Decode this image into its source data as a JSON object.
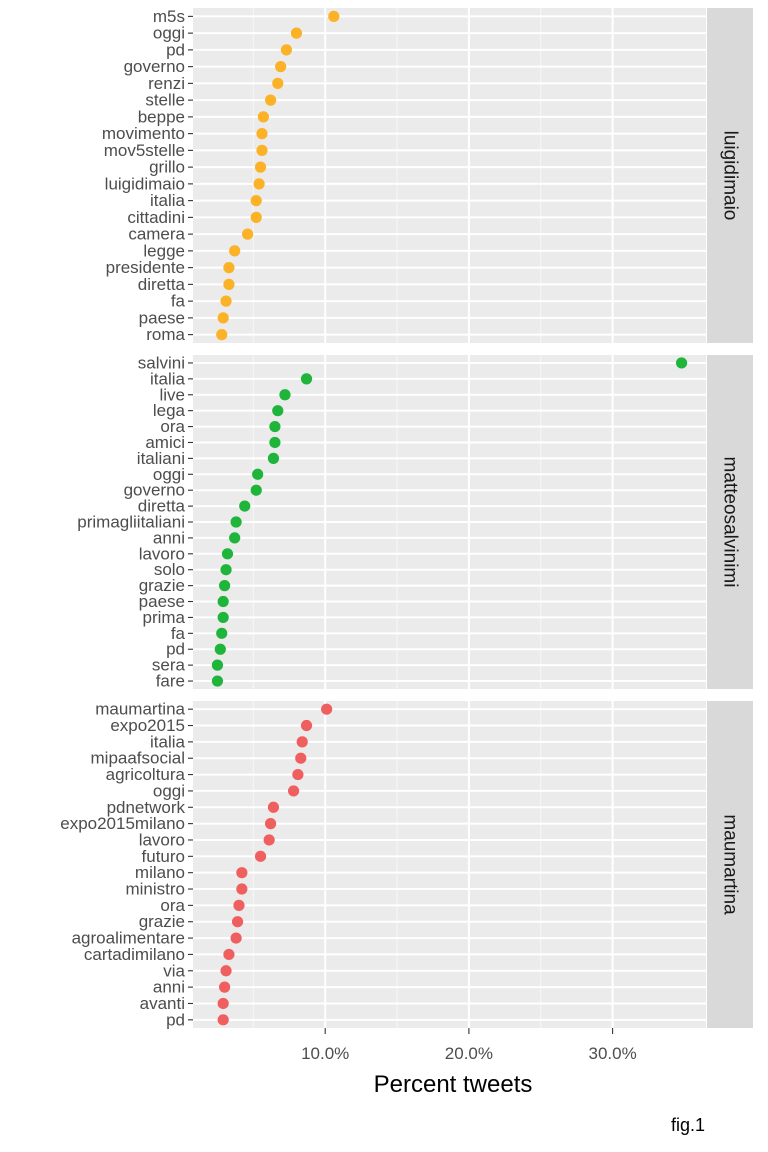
{
  "chart_data": {
    "type": "scatter",
    "xlabel": "Percent tweets",
    "ylabel": "",
    "caption": "fig.1",
    "xlim": [
      0.8,
      36.5
    ],
    "x_ticks": [
      10,
      20,
      30
    ],
    "x_tick_labels": [
      "10.0%",
      "20.0%",
      "30.0%"
    ],
    "grid": true,
    "panels": [
      {
        "facet": "luigidimaio",
        "color": "#FBB227",
        "points": [
          {
            "word": "m5s",
            "value": 10.6
          },
          {
            "word": "oggi",
            "value": 8.0
          },
          {
            "word": "pd",
            "value": 7.3
          },
          {
            "word": "governo",
            "value": 6.9
          },
          {
            "word": "renzi",
            "value": 6.7
          },
          {
            "word": "stelle",
            "value": 6.2
          },
          {
            "word": "beppe",
            "value": 5.7
          },
          {
            "word": "movimento",
            "value": 5.6
          },
          {
            "word": "mov5stelle",
            "value": 5.6
          },
          {
            "word": "grillo",
            "value": 5.5
          },
          {
            "word": "luigidimaio",
            "value": 5.4
          },
          {
            "word": "italia",
            "value": 5.2
          },
          {
            "word": "cittadini",
            "value": 5.2
          },
          {
            "word": "camera",
            "value": 4.6
          },
          {
            "word": "legge",
            "value": 3.7
          },
          {
            "word": "presidente",
            "value": 3.3
          },
          {
            "word": "diretta",
            "value": 3.3
          },
          {
            "word": "fa",
            "value": 3.1
          },
          {
            "word": "paese",
            "value": 2.9
          },
          {
            "word": "roma",
            "value": 2.8
          }
        ]
      },
      {
        "facet": "matteosalvinimi",
        "color": "#1EB53A",
        "points": [
          {
            "word": "salvini",
            "value": 34.8
          },
          {
            "word": "italia",
            "value": 8.7
          },
          {
            "word": "live",
            "value": 7.2
          },
          {
            "word": "lega",
            "value": 6.7
          },
          {
            "word": "ora",
            "value": 6.5
          },
          {
            "word": "amici",
            "value": 6.5
          },
          {
            "word": "italiani",
            "value": 6.4
          },
          {
            "word": "oggi",
            "value": 5.3
          },
          {
            "word": "governo",
            "value": 5.2
          },
          {
            "word": "diretta",
            "value": 4.4
          },
          {
            "word": "primagliitaliani",
            "value": 3.8
          },
          {
            "word": "anni",
            "value": 3.7
          },
          {
            "word": "lavoro",
            "value": 3.2
          },
          {
            "word": "solo",
            "value": 3.1
          },
          {
            "word": "grazie",
            "value": 3.0
          },
          {
            "word": "paese",
            "value": 2.9
          },
          {
            "word": "prima",
            "value": 2.9
          },
          {
            "word": "fa",
            "value": 2.8
          },
          {
            "word": "pd",
            "value": 2.7
          },
          {
            "word": "sera",
            "value": 2.5
          },
          {
            "word": "fare",
            "value": 2.5
          }
        ]
      },
      {
        "facet": "maumartina",
        "color": "#F05F5F",
        "points": [
          {
            "word": "maumartina",
            "value": 10.1
          },
          {
            "word": "expo2015",
            "value": 8.7
          },
          {
            "word": "italia",
            "value": 8.4
          },
          {
            "word": "mipaafsocial",
            "value": 8.3
          },
          {
            "word": "agricoltura",
            "value": 8.1
          },
          {
            "word": "oggi",
            "value": 7.8
          },
          {
            "word": "pdnetwork",
            "value": 6.4
          },
          {
            "word": "expo2015milano",
            "value": 6.2
          },
          {
            "word": "lavoro",
            "value": 6.1
          },
          {
            "word": "futuro",
            "value": 5.5
          },
          {
            "word": "milano",
            "value": 4.2
          },
          {
            "word": "ministro",
            "value": 4.2
          },
          {
            "word": "ora",
            "value": 4.0
          },
          {
            "word": "grazie",
            "value": 3.9
          },
          {
            "word": "agroalimentare",
            "value": 3.8
          },
          {
            "word": "cartadimilano",
            "value": 3.3
          },
          {
            "word": "via",
            "value": 3.1
          },
          {
            "word": "anni",
            "value": 3.0
          },
          {
            "word": "avanti",
            "value": 2.9
          },
          {
            "word": "pd",
            "value": 2.9
          }
        ]
      }
    ]
  }
}
